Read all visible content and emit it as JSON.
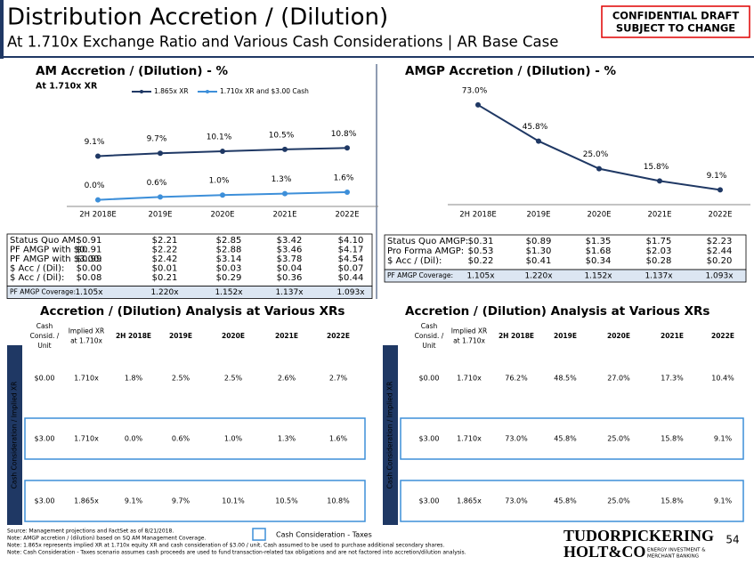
{
  "header": {
    "title": "Distribution Accretion / (Dilution)",
    "subtitle": "At 1.710x Exchange Ratio and Various Cash Considerations | AR Base Case",
    "confidential": [
      "CONFIDENTIAL DRAFT",
      "SUBJECT TO CHANGE"
    ]
  },
  "chart_data": [
    {
      "type": "line",
      "title": "AM Accretion / (Dilution) - %",
      "subtitle": "At 1.710x XR",
      "categories": [
        "2H 2018E",
        "2019E",
        "2020E",
        "2021E",
        "2022E"
      ],
      "ylim": [
        -1,
        24
      ],
      "series": [
        {
          "name": "1.865x XR",
          "color": "#1f3864",
          "values": [
            9.1,
            9.7,
            10.1,
            10.5,
            10.8
          ],
          "value_labels": [
            "9.1%",
            "9.7%",
            "10.1%",
            "10.5%",
            "10.8%"
          ]
        },
        {
          "name": "1.710x XR and $3.00 Cash",
          "color": "#3d8fd9",
          "values": [
            0.0,
            0.6,
            1.0,
            1.3,
            1.6
          ],
          "value_labels": [
            "0.0%",
            "0.6%",
            "1.0%",
            "1.3%",
            "1.6%"
          ]
        }
      ]
    },
    {
      "type": "line",
      "title": "AMGP Accretion / (Dilution) - %",
      "categories": [
        "2H 2018E",
        "2019E",
        "2020E",
        "2021E",
        "2022E"
      ],
      "ylim": [
        -2,
        85
      ],
      "series": [
        {
          "color": "#1f3864",
          "values": [
            73.0,
            45.8,
            25.0,
            15.8,
            9.1
          ],
          "value_labels": [
            "73.0%",
            "45.8%",
            "25.0%",
            "15.8%",
            "9.1%"
          ]
        }
      ]
    }
  ],
  "am_table": {
    "rows": [
      {
        "label": "Status Quo AM:",
        "values": [
          "$0.91",
          "$2.21",
          "$2.85",
          "$3.42",
          "$4.10"
        ]
      },
      {
        "label": "PF AMGP with $0:",
        "values": [
          "$0.91",
          "$2.22",
          "$2.88",
          "$3.46",
          "$4.17"
        ]
      },
      {
        "label": "PF AMGP with $3.00:",
        "values": [
          "$0.99",
          "$2.42",
          "$3.14",
          "$3.78",
          "$4.54"
        ]
      },
      {
        "label": "$ Acc / (Dil):",
        "values": [
          "$0.00",
          "$0.01",
          "$0.03",
          "$0.04",
          "$0.07"
        ]
      },
      {
        "label": "$ Acc / (Dil):",
        "values": [
          "$0.08",
          "$0.21",
          "$0.29",
          "$0.36",
          "$0.44"
        ]
      }
    ],
    "coverage": {
      "label": "PF AMGP Coverage:",
      "values": [
        "1.105x",
        "1.220x",
        "1.152x",
        "1.137x",
        "1.093x"
      ]
    }
  },
  "amgp_table": {
    "rows": [
      {
        "label": "Status Quo AMGP:",
        "values": [
          "$0.31",
          "$0.89",
          "$1.35",
          "$1.75",
          "$2.23"
        ]
      },
      {
        "label": "Pro Forma AMGP:",
        "values": [
          "$0.53",
          "$1.30",
          "$1.68",
          "$2.03",
          "$2.44"
        ]
      },
      {
        "label": "$ Acc / (Dil):",
        "values": [
          "$0.22",
          "$0.41",
          "$0.34",
          "$0.28",
          "$0.20"
        ]
      }
    ],
    "coverage": {
      "label": "PF AMGP Coverage:",
      "values": [
        "1.105x",
        "1.220x",
        "1.152x",
        "1.137x",
        "1.093x"
      ]
    }
  },
  "analysis": [
    {
      "title": "Accretion / (Dilution) Analysis at Various XRs",
      "side_label": "Cash Consideration / Implied XR",
      "headers": [
        [
          "Cash",
          "Consid. /",
          "Unit"
        ],
        [
          "Implied XR",
          "at 1.710x"
        ],
        [
          "2H 2018E"
        ],
        [
          "2019E"
        ],
        [
          "2020E"
        ],
        [
          "2021E"
        ],
        [
          "2022E"
        ]
      ],
      "rows": [
        [
          "$0.00",
          "1.710x",
          "1.8%",
          "2.5%",
          "2.5%",
          "2.6%",
          "2.7%"
        ],
        [
          "$3.00",
          "1.710x",
          "0.0%",
          "0.6%",
          "1.0%",
          "1.3%",
          "1.6%"
        ],
        [
          "$3.00",
          "1.865x",
          "9.1%",
          "9.7%",
          "10.1%",
          "10.5%",
          "10.8%"
        ]
      ]
    },
    {
      "title": "Accretion / (Dilution) Analysis at Various XRs",
      "side_label": "Cash Consideration / Implied XR",
      "headers": [
        [
          "Cash",
          "Consid. /",
          "Unit"
        ],
        [
          "Implied XR",
          "at 1.710x"
        ],
        [
          "2H 2018E"
        ],
        [
          "2019E"
        ],
        [
          "2020E"
        ],
        [
          "2021E"
        ],
        [
          "2022E"
        ]
      ],
      "rows": [
        [
          "$0.00",
          "1.710x",
          "76.2%",
          "48.5%",
          "27.0%",
          "17.3%",
          "10.4%"
        ],
        [
          "$3.00",
          "1.710x",
          "73.0%",
          "45.8%",
          "25.0%",
          "15.8%",
          "9.1%"
        ],
        [
          "$3.00",
          "1.865x",
          "73.0%",
          "45.8%",
          "25.0%",
          "15.8%",
          "9.1%"
        ]
      ]
    }
  ],
  "legend": "Cash Consideration - Taxes",
  "footnotes": [
    "Source: Management projections and FactSet as of 8/21/2018.",
    "Note: AMGP accretion / (dilution) based on SQ AM Management Coverage.",
    "Note: 1.865x represents implied XR at 1.710x equity XR and cash consideration of $3.00 / unit. Cash assumed to be used to purchase additional secondary shares.",
    "Note: Cash Consideration - Taxes scenario assumes cash proceeds are used to fund transaction-related tax obligations and are not factored into accretion/dilution analysis."
  ],
  "logo": {
    "name1": "TUDORPICKERING",
    "name2": "HOLT&CO",
    "tagline": [
      "ENERGY INVESTMENT &",
      "MERCHANT BANKING"
    ]
  },
  "page_number": 54
}
